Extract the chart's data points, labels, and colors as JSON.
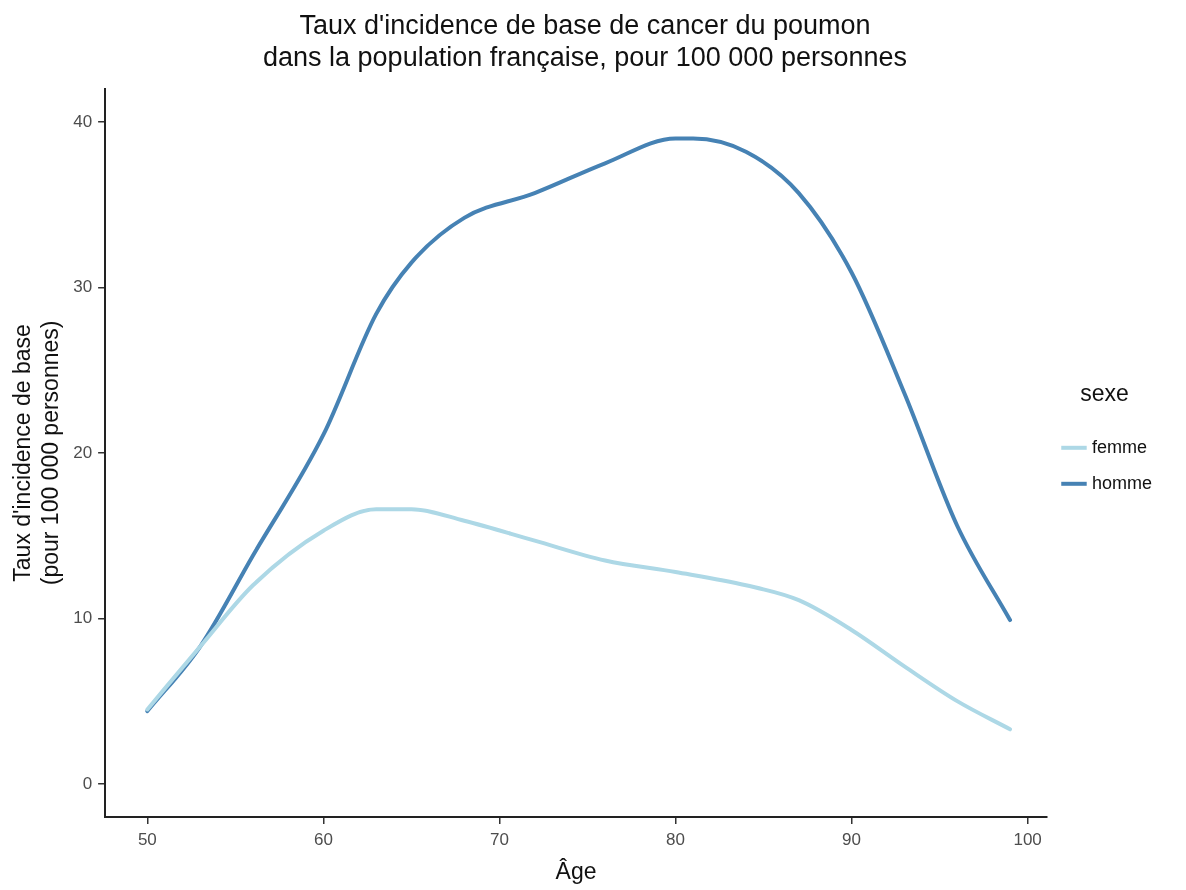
{
  "chart_data": {
    "type": "line",
    "title": "Taux d'incidence de base de cancer du poumon\ndans la population française, pour 100 000 personnes",
    "xlabel": "Âge",
    "ylabel": "Taux d'incidence de base\n(pour 100 000 personnes)",
    "legend_title": "sexe",
    "legend": "right",
    "grid": false,
    "marker": "none",
    "line_style": "solid",
    "xlim": [
      47.6,
      101.1
    ],
    "xticks": [
      50,
      60,
      70,
      80,
      90,
      100
    ],
    "ylim": [
      -2,
      42
    ],
    "yticks": [
      0,
      10,
      20,
      30,
      40
    ],
    "series": [
      {
        "name": "femme",
        "color": "#add8e6",
        "x": [
          50,
          53,
          56,
          60,
          63,
          65,
          68,
          72,
          76,
          80,
          84,
          87,
          90,
          93,
          96,
          99
        ],
        "values": [
          4.5,
          8.3,
          12.0,
          15.3,
          16.6,
          16.6,
          15.9,
          14.7,
          13.5,
          12.8,
          12.0,
          11.1,
          9.3,
          7.1,
          5.0,
          3.3
        ]
      },
      {
        "name": "homme",
        "color": "#4682b4",
        "x": [
          50,
          53,
          56,
          60,
          63,
          65,
          68,
          72,
          76,
          80,
          81,
          84,
          87,
          90,
          93,
          96,
          99
        ],
        "values": [
          4.4,
          8.3,
          13.8,
          21.1,
          28.4,
          31.5,
          34.2,
          35.7,
          37.5,
          39.0,
          39.0,
          38.2,
          35.7,
          30.9,
          23.6,
          15.6,
          9.9
        ]
      }
    ]
  }
}
